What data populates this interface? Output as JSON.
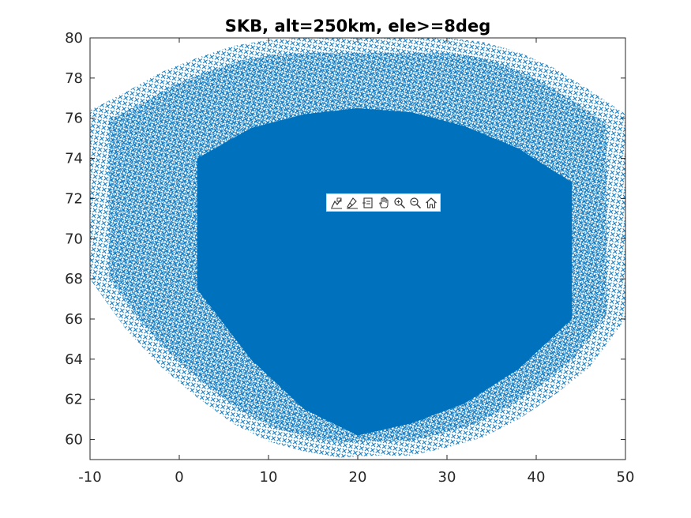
{
  "chart_data": {
    "type": "scatter",
    "title": "SKB, alt=250km, ele>=8deg",
    "xlabel": "",
    "ylabel": "",
    "xlim": [
      -10,
      50
    ],
    "ylim": [
      59,
      80
    ],
    "xticks": [
      -10,
      0,
      10,
      20,
      30,
      40,
      50
    ],
    "yticks": [
      60,
      62,
      64,
      66,
      68,
      70,
      72,
      74,
      76,
      78,
      80
    ],
    "grid": false,
    "marker": "x",
    "series_color": "#0072BD",
    "coverage_boundary": {
      "x": [
        -10,
        -6,
        -2,
        2,
        6,
        10,
        14,
        18,
        22,
        26,
        30,
        34,
        38,
        42,
        46,
        50,
        50,
        48,
        46,
        42,
        38,
        34,
        30,
        26,
        22,
        18,
        14,
        10,
        6,
        2,
        -2,
        -6,
        -10,
        -10
      ],
      "y": [
        76.4,
        77.3,
        78.3,
        79.0,
        79.6,
        79.9,
        80.0,
        80.0,
        80.0,
        80.0,
        80.0,
        79.8,
        79.3,
        78.5,
        77.4,
        76.2,
        66.0,
        64.8,
        63.6,
        62.2,
        61.0,
        60.1,
        59.6,
        59.2,
        59.2,
        59.1,
        59.4,
        59.9,
        60.8,
        62.1,
        63.6,
        65.5,
        68.0,
        76.4
      ]
    },
    "dense_core": {
      "x": [
        2,
        8,
        14,
        20,
        26,
        32,
        38,
        44,
        44,
        38,
        32,
        26,
        20,
        14,
        8,
        2
      ],
      "y": [
        74.0,
        75.5,
        76.2,
        76.5,
        76.3,
        75.6,
        74.5,
        72.8,
        66.0,
        63.5,
        61.8,
        60.8,
        60.2,
        61.5,
        64.0,
        67.5
      ]
    }
  },
  "toolbar": {
    "items": [
      {
        "name": "data-tips-icon"
      },
      {
        "name": "brush-icon"
      },
      {
        "name": "export-icon"
      },
      {
        "name": "pan-icon"
      },
      {
        "name": "zoom-in-icon"
      },
      {
        "name": "zoom-out-icon"
      },
      {
        "name": "home-icon"
      }
    ]
  }
}
